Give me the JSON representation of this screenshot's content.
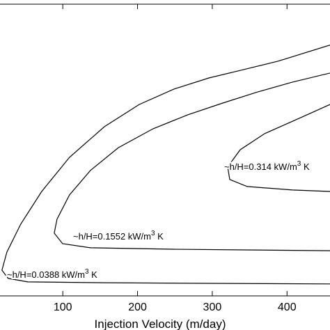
{
  "chart_data": {
    "type": "contour",
    "x_label": "Injection Velocity (m/day)",
    "xlim": [
      16,
      457.5
    ],
    "ylim": [
      0,
      1
    ],
    "xticks": [
      100,
      200,
      300,
      400
    ],
    "color": "#000000",
    "series": [
      {
        "label": {
          "text": "~h/H=0.0388 kW/m",
          "sup": "3",
          "after": " K"
        },
        "x": [
          457.5,
          388.6,
          342,
          295.4,
          248.8,
          202.2,
          155.6,
          109,
          71.8,
          43.8,
          25.2,
          18.6,
          27,
          53.1,
          155.6,
          295.4,
          457.5
        ],
        "y": [
          0.86,
          0.805,
          0.776,
          0.747,
          0.709,
          0.656,
          0.58,
          0.475,
          0.358,
          0.246,
          0.15,
          0.088,
          0.06,
          0.048,
          0.045,
          0.043,
          0.041
        ]
      },
      {
        "label": {
          "text": "~h/H=0.1552 kW/m",
          "sup": "3",
          "after": " K"
        },
        "x": [
          457.5,
          407.3,
          360.7,
          314.1,
          267.5,
          220.9,
          174.3,
          137,
          109,
          92.3,
          88.6,
          99.7,
          137,
          248.8,
          457.5
        ],
        "y": [
          0.764,
          0.733,
          0.699,
          0.661,
          0.621,
          0.573,
          0.508,
          0.43,
          0.346,
          0.263,
          0.215,
          0.179,
          0.165,
          0.16,
          0.155
        ]
      },
      {
        "label": {
          "text": "~h/H=0.314 kW/m",
          "sup": "3",
          "after": " K"
        },
        "x": [
          457.5,
          416.5,
          369.9,
          337.3,
          320.6,
          323.4,
          346.7,
          407.3,
          457.5
        ],
        "y": [
          0.656,
          0.609,
          0.556,
          0.501,
          0.442,
          0.399,
          0.375,
          0.363,
          0.358
        ]
      }
    ]
  }
}
